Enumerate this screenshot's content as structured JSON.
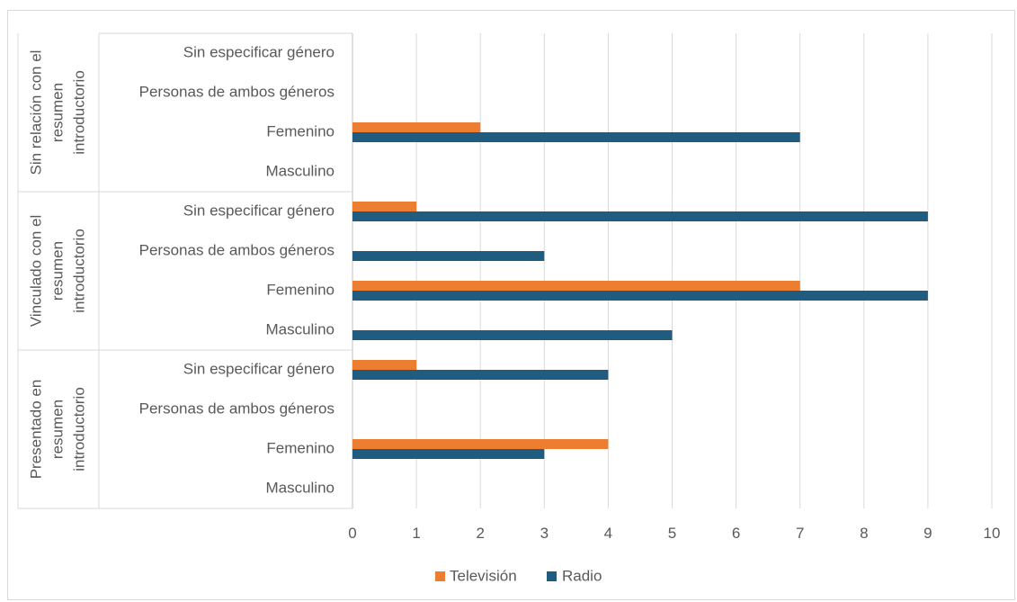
{
  "chart_data": {
    "type": "bar",
    "orientation": "horizontal",
    "groups": [
      {
        "label_lines": [
          "Sin relación con el",
          "resumen",
          "introductorio"
        ],
        "categories": [
          "Sin especificar género",
          "Personas de ambos géneros",
          "Femenino",
          "Masculino"
        ]
      },
      {
        "label_lines": [
          "Vinculado con el",
          "resumen",
          "introductorio"
        ],
        "categories": [
          "Sin especificar género",
          "Personas de ambos géneros",
          "Femenino",
          "Masculino"
        ]
      },
      {
        "label_lines": [
          "Presentado en",
          "resumen",
          "introductorio"
        ],
        "categories": [
          "Sin especificar género",
          "Personas de ambos géneros",
          "Femenino",
          "Masculino"
        ]
      }
    ],
    "series": [
      {
        "name": "Televisión",
        "color": "#ed7d31",
        "values": [
          [
            0,
            0,
            2,
            0
          ],
          [
            1,
            0,
            7,
            0
          ],
          [
            1,
            0,
            4,
            0
          ]
        ]
      },
      {
        "name": "Radio",
        "color": "#1f5c80",
        "values": [
          [
            0,
            0,
            7,
            0
          ],
          [
            9,
            3,
            9,
            5
          ],
          [
            4,
            0,
            3,
            0
          ]
        ]
      }
    ],
    "x_ticks": [
      "0",
      "1",
      "2",
      "3",
      "4",
      "5",
      "6",
      "7",
      "8",
      "9",
      "10"
    ],
    "xlim": [
      0,
      10
    ],
    "grid": true,
    "legend_position": "bottom"
  }
}
